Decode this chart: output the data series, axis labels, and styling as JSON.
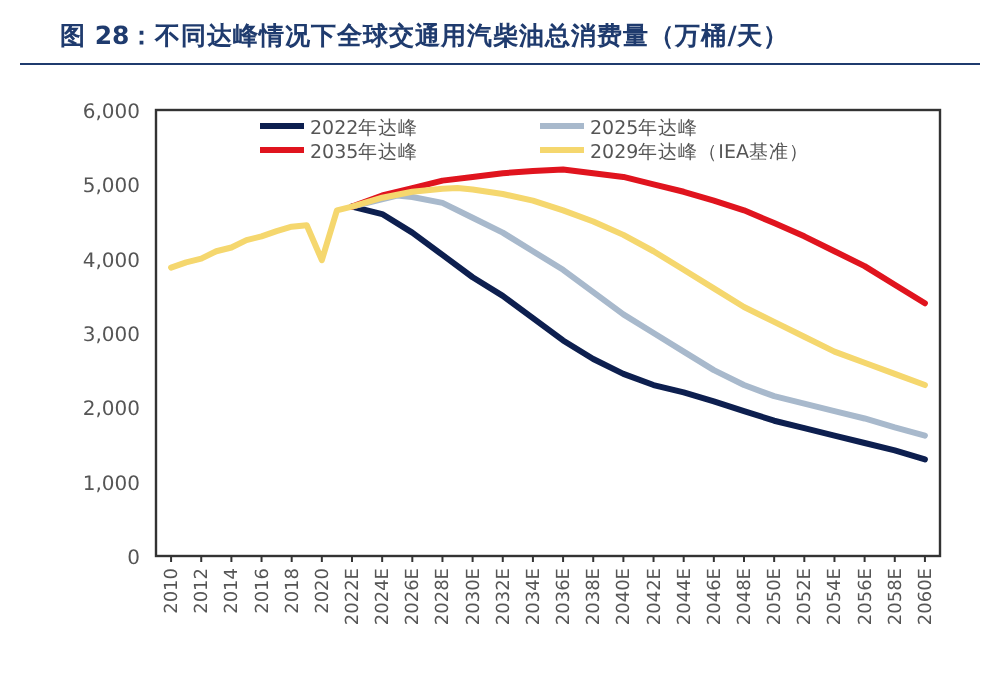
{
  "chart_data": {
    "type": "line",
    "title": "图 28：不同达峰情况下全球交通用汽柴油总消费量（万桶/天）",
    "xlim": [
      2009,
      2061
    ],
    "xticks": [
      2010,
      2012,
      2014,
      2016,
      2018,
      2020,
      {
        "value": 2022,
        "label": "2022E"
      },
      {
        "value": 2024,
        "label": "2024E"
      },
      {
        "value": 2026,
        "label": "2026E"
      },
      {
        "value": 2028,
        "label": "2028E"
      },
      {
        "value": 2030,
        "label": "2030E"
      },
      {
        "value": 2032,
        "label": "2032E"
      },
      {
        "value": 2034,
        "label": "2034E"
      },
      {
        "value": 2036,
        "label": "2036E"
      },
      {
        "value": 2038,
        "label": "2038E"
      },
      {
        "value": 2040,
        "label": "2040E"
      },
      {
        "value": 2042,
        "label": "2042E"
      },
      {
        "value": 2044,
        "label": "2044E"
      },
      {
        "value": 2046,
        "label": "2046E"
      },
      {
        "value": 2048,
        "label": "2048E"
      },
      {
        "value": 2050,
        "label": "2050E"
      },
      {
        "value": 2052,
        "label": "2052E"
      },
      {
        "value": 2054,
        "label": "2054E"
      },
      {
        "value": 2056,
        "label": "2056E"
      },
      {
        "value": 2058,
        "label": "2058E"
      },
      {
        "value": 2060,
        "label": "2060E"
      }
    ],
    "ylim": [
      0,
      6000
    ],
    "yticks": [
      0,
      {
        "value": 1000,
        "label": "1,000"
      },
      {
        "value": 2000,
        "label": "2,000"
      },
      {
        "value": 3000,
        "label": "3,000"
      },
      {
        "value": 4000,
        "label": "4,000"
      },
      {
        "value": 5000,
        "label": "5,000"
      },
      {
        "value": 6000,
        "label": "6,000"
      }
    ],
    "grid": false,
    "legend": "top",
    "marker": "none",
    "line_style": "solid",
    "series": [
      {
        "name": "2022年达峰",
        "color": "#0d1f4f",
        "x": [
          2022,
          2024,
          2026,
          2028,
          2030,
          2032,
          2034,
          2036,
          2038,
          2040,
          2042,
          2044,
          2046,
          2048,
          2050,
          2052,
          2054,
          2056,
          2058,
          2060
        ],
        "values": [
          4700,
          4600,
          4350,
          4050,
          3750,
          3500,
          3200,
          2900,
          2650,
          2450,
          2300,
          2200,
          2080,
          1950,
          1820,
          1720,
          1620,
          1520,
          1420,
          1300
        ]
      },
      {
        "name": "2025年达峰",
        "color": "#a8b9cc",
        "x": [
          2022,
          2025,
          2026,
          2028,
          2030,
          2032,
          2034,
          2036,
          2038,
          2040,
          2042,
          2044,
          2046,
          2048,
          2050,
          2052,
          2054,
          2056,
          2058,
          2060
        ],
        "values": [
          4700,
          4850,
          4830,
          4750,
          4550,
          4350,
          4100,
          3850,
          3550,
          3250,
          3000,
          2750,
          2500,
          2300,
          2150,
          2050,
          1950,
          1850,
          1730,
          1620
        ]
      },
      {
        "name": "2035年达峰",
        "color": "#e0141e",
        "x": [
          2022,
          2024,
          2026,
          2028,
          2030,
          2032,
          2034,
          2036,
          2038,
          2040,
          2042,
          2044,
          2046,
          2048,
          2050,
          2052,
          2054,
          2056,
          2058,
          2060
        ],
        "values": [
          4700,
          4850,
          4950,
          5050,
          5100,
          5150,
          5180,
          5200,
          5150,
          5100,
          5000,
          4900,
          4780,
          4650,
          4480,
          4300,
          4100,
          3900,
          3650,
          3400
        ]
      },
      {
        "name": "2029年达峰（IEA基准）",
        "color": "#f5d76e",
        "x": [
          2010,
          2011,
          2012,
          2013,
          2014,
          2015,
          2016,
          2017,
          2018,
          2019,
          2020,
          2021,
          2022,
          2024,
          2026,
          2028,
          2029,
          2030,
          2032,
          2034,
          2036,
          2038,
          2040,
          2042,
          2044,
          2046,
          2048,
          2050,
          2052,
          2054,
          2056,
          2058,
          2060
        ],
        "values": [
          3880,
          3950,
          4000,
          4100,
          4150,
          4250,
          4300,
          4370,
          4430,
          4450,
          3980,
          4650,
          4700,
          4820,
          4900,
          4940,
          4950,
          4930,
          4870,
          4780,
          4650,
          4500,
          4320,
          4100,
          3850,
          3600,
          3350,
          3150,
          2950,
          2750,
          2600,
          2450,
          2300
        ]
      }
    ]
  }
}
